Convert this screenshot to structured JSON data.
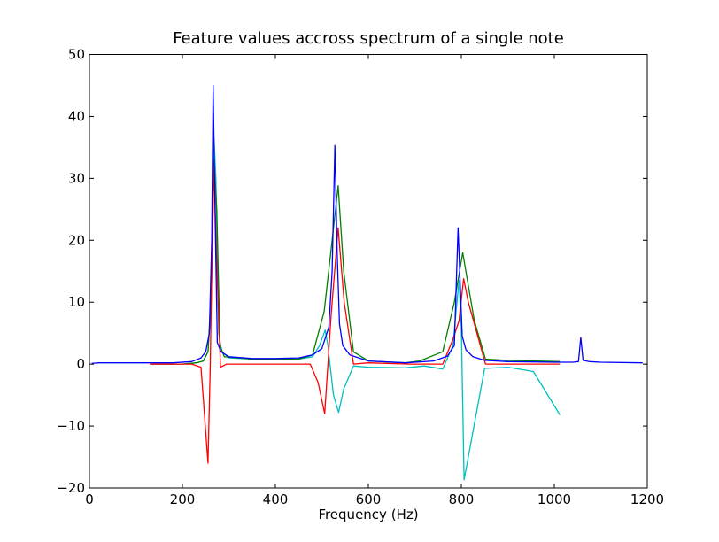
{
  "chart_data": {
    "type": "line",
    "title": "Feature values accross spectrum of a single note",
    "xlabel": "Frequency (Hz)",
    "ylabel": "",
    "xlim": [
      0,
      1200
    ],
    "ylim": [
      -20,
      50
    ],
    "xticks": [
      0,
      200,
      400,
      600,
      800,
      1000,
      1200
    ],
    "yticks": [
      -20,
      -10,
      0,
      10,
      20,
      30,
      40,
      50
    ],
    "xtick_labels": [
      "0",
      "200",
      "400",
      "600",
      "800",
      "1000",
      "1200"
    ],
    "ytick_labels": [
      "−20",
      "−10",
      "0",
      "10",
      "20",
      "30",
      "40",
      "50"
    ],
    "grid": false,
    "legend": "none",
    "series": [
      {
        "color": "#00bfbf",
        "points": [
          [
            130,
            0
          ],
          [
            200,
            0
          ],
          [
            230,
            0.2
          ],
          [
            245,
            0.5
          ],
          [
            255,
            2
          ],
          [
            262,
            12
          ],
          [
            268,
            36.5
          ],
          [
            272,
            30
          ],
          [
            278,
            5
          ],
          [
            285,
            2
          ],
          [
            300,
            1
          ],
          [
            350,
            0.8
          ],
          [
            450,
            0.8
          ],
          [
            480,
            1.2
          ],
          [
            495,
            3
          ],
          [
            507,
            5.5
          ],
          [
            513,
            3
          ],
          [
            525,
            -5
          ],
          [
            536,
            -7.8
          ],
          [
            547,
            -4
          ],
          [
            568,
            -0.3
          ],
          [
            600,
            -0.5
          ],
          [
            680,
            -0.6
          ],
          [
            720,
            -0.3
          ],
          [
            760,
            -0.8
          ],
          [
            782,
            3
          ],
          [
            795,
            13.5
          ],
          [
            800,
            6
          ],
          [
            806,
            -18.7
          ],
          [
            850,
            -0.7
          ],
          [
            900,
            -0.5
          ],
          [
            955,
            -1.2
          ],
          [
            1012,
            -8.2
          ]
        ]
      },
      {
        "color": "#007f00",
        "points": [
          [
            130,
            0
          ],
          [
            200,
            0
          ],
          [
            230,
            0.2
          ],
          [
            245,
            0.5
          ],
          [
            255,
            2
          ],
          [
            262,
            10
          ],
          [
            268,
            33
          ],
          [
            274,
            25
          ],
          [
            281,
            3
          ],
          [
            290,
            1.2
          ],
          [
            350,
            0.8
          ],
          [
            450,
            0.8
          ],
          [
            480,
            1.5
          ],
          [
            505,
            8.5
          ],
          [
            522,
            20
          ],
          [
            535,
            28.8
          ],
          [
            547,
            15
          ],
          [
            568,
            2
          ],
          [
            600,
            0.5
          ],
          [
            680,
            0.2
          ],
          [
            710,
            0.5
          ],
          [
            760,
            2
          ],
          [
            785,
            10
          ],
          [
            803,
            18
          ],
          [
            812,
            14
          ],
          [
            828,
            7
          ],
          [
            852,
            0.8
          ],
          [
            900,
            0.6
          ],
          [
            1012,
            0.4
          ]
        ]
      },
      {
        "color": "#ff0000",
        "points": [
          [
            130,
            0
          ],
          [
            200,
            0
          ],
          [
            220,
            0
          ],
          [
            240,
            -0.5
          ],
          [
            255,
            -16
          ],
          [
            260,
            0
          ],
          [
            263,
            15
          ],
          [
            268,
            33
          ],
          [
            273,
            18
          ],
          [
            282,
            -0.5
          ],
          [
            295,
            0
          ],
          [
            350,
            0
          ],
          [
            475,
            0
          ],
          [
            492,
            -3
          ],
          [
            506,
            -8
          ],
          [
            520,
            8
          ],
          [
            535,
            22
          ],
          [
            548,
            10
          ],
          [
            568,
            0
          ],
          [
            600,
            0.2
          ],
          [
            690,
            0
          ],
          [
            720,
            0
          ],
          [
            760,
            0
          ],
          [
            782,
            4
          ],
          [
            795,
            7
          ],
          [
            805,
            13.8
          ],
          [
            815,
            10
          ],
          [
            852,
            0
          ],
          [
            900,
            0
          ],
          [
            1012,
            0
          ]
        ]
      },
      {
        "color": "#0000ff",
        "points": [
          [
            5,
            0.1
          ],
          [
            20,
            0.2
          ],
          [
            100,
            0.2
          ],
          [
            180,
            0.2
          ],
          [
            220,
            0.4
          ],
          [
            240,
            1
          ],
          [
            250,
            2
          ],
          [
            258,
            5
          ],
          [
            263,
            20
          ],
          [
            266,
            45
          ],
          [
            270,
            25
          ],
          [
            275,
            3.5
          ],
          [
            283,
            2
          ],
          [
            300,
            1.2
          ],
          [
            350,
            0.9
          ],
          [
            400,
            0.9
          ],
          [
            450,
            1
          ],
          [
            480,
            1.5
          ],
          [
            500,
            2.5
          ],
          [
            515,
            6
          ],
          [
            522,
            15
          ],
          [
            528,
            35.3
          ],
          [
            533,
            18
          ],
          [
            538,
            6.5
          ],
          [
            545,
            3
          ],
          [
            560,
            1.5
          ],
          [
            600,
            0.5
          ],
          [
            680,
            0.2
          ],
          [
            740,
            0.5
          ],
          [
            770,
            1.3
          ],
          [
            785,
            3
          ],
          [
            793,
            22
          ],
          [
            798,
            12
          ],
          [
            802,
            4.5
          ],
          [
            810,
            2.3
          ],
          [
            825,
            1.2
          ],
          [
            850,
            0.6
          ],
          [
            900,
            0.4
          ],
          [
            1000,
            0.3
          ],
          [
            1040,
            0.3
          ],
          [
            1052,
            0.4
          ],
          [
            1057,
            4.3
          ],
          [
            1062,
            0.6
          ],
          [
            1075,
            0.4
          ],
          [
            1100,
            0.3
          ],
          [
            1190,
            0.2
          ]
        ]
      }
    ]
  }
}
